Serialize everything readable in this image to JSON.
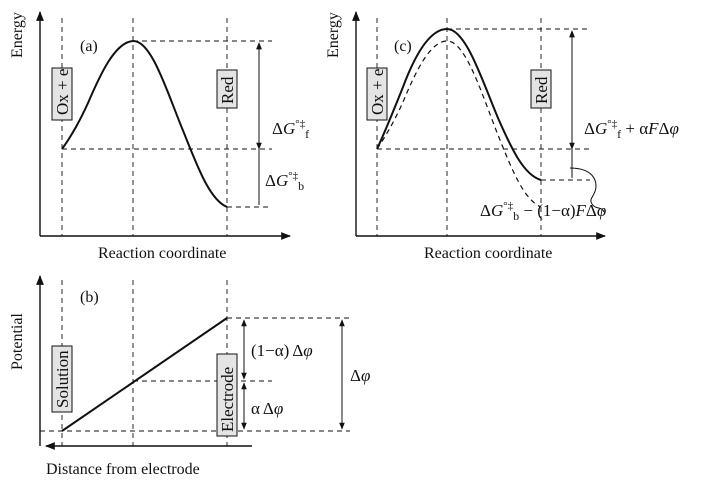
{
  "panel_a": {
    "tag": "(a)",
    "y_axis": "Energy",
    "x_axis": "Reaction coordinate",
    "left_box": "Ox + e",
    "right_box": "Red",
    "label_f": {
      "prefix": "Δ",
      "sym": "G",
      "sup": "°‡",
      "sub": "f"
    },
    "label_b": {
      "prefix": "Δ",
      "sym": "G",
      "sup": "°‡",
      "sub": "b"
    }
  },
  "panel_b": {
    "tag": "(b)",
    "y_axis": "Potential",
    "x_axis": "Distance from electrode",
    "left_box": "Solution",
    "right_box": "Electrode",
    "upper_label": {
      "coef": "(1−α)",
      "delta": "Δ",
      "phi": "φ"
    },
    "lower_label": {
      "coef": "α",
      "delta": "Δ",
      "phi": "φ"
    },
    "total_label": {
      "delta": "Δ",
      "phi": "φ"
    }
  },
  "panel_c": {
    "tag": "(c)",
    "y_axis": "Energy",
    "x_axis": "Reaction coordinate",
    "left_box": "Ox + e",
    "right_box": "Red",
    "label_f": {
      "prefix": "Δ",
      "sym": "G",
      "sup": "°‡",
      "sub": "f",
      "plus": " + ",
      "alpha": "α",
      "F": "F",
      "delta": "Δ",
      "phi": "φ"
    },
    "label_b": {
      "prefix": "Δ",
      "sym": "G",
      "sup": "°‡",
      "sub": "b",
      "minus": " − (1−α)",
      "F": "F",
      "delta": "Δ",
      "phi": "φ"
    }
  }
}
